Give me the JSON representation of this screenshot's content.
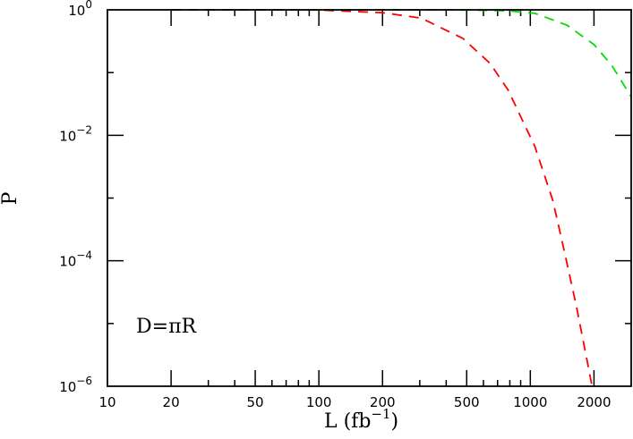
{
  "chart_data": {
    "type": "line",
    "xlabel": "L (fb",
    "xlabel_sup": "−1",
    "xlabel_close": ")",
    "ylabel": "P",
    "xscale": "log",
    "yscale": "log",
    "xlim": [
      10,
      3000
    ],
    "ylim": [
      1e-06,
      1
    ],
    "grid": false,
    "annotation": "D=πR",
    "x_ticks": [
      10,
      20,
      50,
      100,
      200,
      500,
      1000,
      2000
    ],
    "x_tick_labels": [
      "10",
      "20",
      "50",
      "100",
      "200",
      "500",
      "1000",
      "2000"
    ],
    "y_ticks": [
      1,
      0.01,
      0.0001,
      1e-06
    ],
    "y_tick_labels": [
      {
        "base": "10",
        "exp": "0"
      },
      {
        "base": "10",
        "exp": "−2"
      },
      {
        "base": "10",
        "exp": "−4"
      },
      {
        "base": "10",
        "exp": "−6"
      }
    ],
    "series": [
      {
        "color": "#ff0000",
        "style": "dashed",
        "x": [
          20,
          100,
          200,
          304,
          480,
          645,
          784,
          1050,
          1276,
          1450,
          1645,
          1960
        ],
        "y": [
          1,
          0.995,
          0.9,
          0.74,
          0.35,
          0.14,
          0.053,
          0.0067,
          0.00093,
          0.00014,
          2e-05,
          1e-06
        ]
      },
      {
        "color": "#00dd00",
        "style": "dashed",
        "x": [
          20,
          500,
          800,
          1050,
          1490,
          2000,
          2430,
          3000
        ],
        "y": [
          1,
          0.995,
          0.96,
          0.88,
          0.57,
          0.28,
          0.13,
          0.041
        ]
      }
    ]
  }
}
